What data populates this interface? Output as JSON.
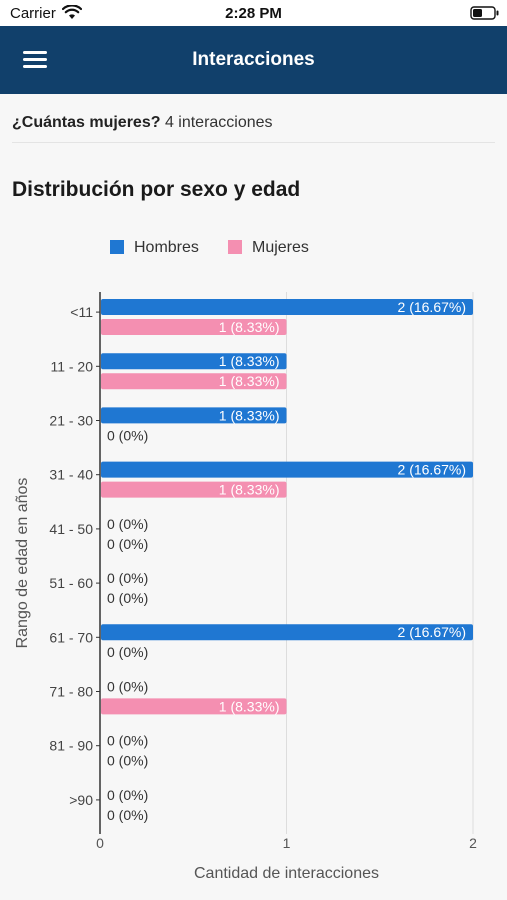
{
  "status_bar": {
    "carrier": "Carrier",
    "time": "2:28 PM"
  },
  "app_bar": {
    "title": "Interacciones",
    "menu_icon": "hamburger-icon"
  },
  "summary": {
    "question": "¿Cuántas mujeres?",
    "count_text": "4 interacciones"
  },
  "section_title": "Distribución por sexo y edad",
  "colors": {
    "hombres": "#1f77d2",
    "mujeres": "#f48fb1",
    "app_bar": "#11406b"
  },
  "chart_data": {
    "type": "bar",
    "orientation": "horizontal",
    "categories": [
      "<11",
      "11 - 20",
      "21 - 30",
      "31 - 40",
      "41 - 50",
      "51 - 60",
      "61 - 70",
      "71 - 80",
      "81 - 90",
      ">90"
    ],
    "series": [
      {
        "name": "Hombres",
        "values": [
          2,
          1,
          1,
          2,
          0,
          0,
          2,
          0,
          0,
          0
        ],
        "labels": [
          "2 (16.67%)",
          "1 (8.33%)",
          "1 (8.33%)",
          "2 (16.67%)",
          "0 (0%)",
          "0 (0%)",
          "2 (16.67%)",
          "0 (0%)",
          "0 (0%)",
          "0 (0%)"
        ]
      },
      {
        "name": "Mujeres",
        "values": [
          1,
          1,
          0,
          1,
          0,
          0,
          0,
          1,
          0,
          0
        ],
        "labels": [
          "1 (8.33%)",
          "1 (8.33%)",
          "0 (0%)",
          "1 (8.33%)",
          "0 (0%)",
          "0 (0%)",
          "0 (0%)",
          "1 (8.33%)",
          "0 (0%)",
          "0 (0%)"
        ]
      }
    ],
    "xlabel": "Cantidad de interacciones",
    "ylabel": "Rango de edad en años",
    "xlim": [
      0,
      2
    ],
    "xticks": [
      "0",
      "1",
      "2"
    ],
    "grid": true,
    "legend": "top"
  }
}
